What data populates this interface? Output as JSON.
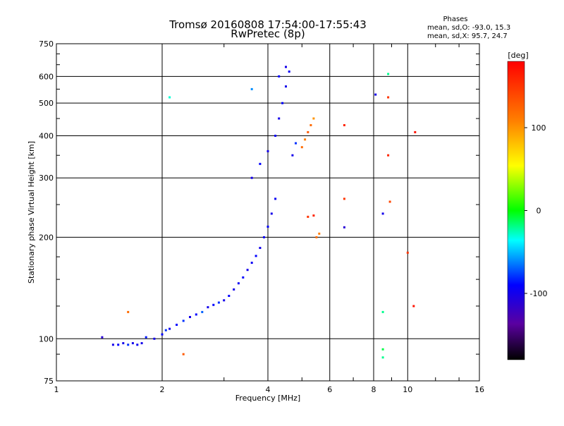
{
  "chart_data": {
    "type": "scatter",
    "title": "Tromsø 20160808 17:54:00-17:55:43",
    "subtitle": "RwPretec (8p)",
    "legend_text": {
      "heading": "Phases",
      "line_o": "mean, sd,O: -93.0, 15.3",
      "line_x": "mean, sd,X:  95.7, 24.7"
    },
    "xlabel": "Frequency [MHz]",
    "ylabel": "Stationary phase Virtual Height [km]",
    "xscale": "log",
    "yscale": "log",
    "xlim": [
      1,
      16
    ],
    "ylim": [
      75,
      750
    ],
    "x_ticks": [
      "1",
      "2",
      "4",
      "6",
      "8",
      "10",
      "16"
    ],
    "y_ticks": [
      "75",
      "100",
      "200",
      "300",
      "400",
      "500",
      "600",
      "750"
    ],
    "grid": true,
    "colorbar": {
      "label": "[deg]",
      "range": [
        -180,
        180
      ],
      "ticks": [
        "100",
        "0",
        "-100"
      ]
    },
    "series": [
      {
        "points": [
          [
            1.35,
            101,
            -110
          ],
          [
            1.45,
            96,
            -100
          ],
          [
            1.5,
            96,
            -90
          ],
          [
            1.55,
            97,
            -100
          ],
          [
            1.6,
            96,
            -80
          ],
          [
            1.65,
            97,
            -100
          ],
          [
            1.7,
            96,
            -95
          ],
          [
            1.75,
            97,
            -100
          ],
          [
            1.8,
            101,
            -85
          ],
          [
            1.9,
            100,
            -100
          ],
          [
            2.0,
            103,
            -90
          ],
          [
            2.05,
            106,
            -80
          ],
          [
            2.1,
            107,
            -100
          ],
          [
            2.2,
            110,
            -90
          ],
          [
            2.3,
            113,
            -80
          ],
          [
            2.4,
            116,
            -100
          ],
          [
            2.5,
            118,
            -90
          ],
          [
            2.6,
            120,
            -70
          ],
          [
            2.7,
            124,
            -100
          ],
          [
            2.8,
            126,
            -90
          ],
          [
            2.9,
            128,
            -80
          ],
          [
            3.0,
            130,
            -100
          ],
          [
            3.1,
            134,
            -90
          ],
          [
            3.2,
            140,
            -100
          ],
          [
            3.3,
            146,
            -95
          ],
          [
            3.4,
            152,
            -90
          ],
          [
            3.5,
            160,
            -100
          ],
          [
            3.6,
            168,
            -95
          ],
          [
            3.7,
            176,
            -90
          ],
          [
            3.8,
            186,
            -100
          ],
          [
            3.9,
            200,
            -95
          ],
          [
            4.0,
            215,
            -90
          ],
          [
            4.1,
            235,
            -100
          ],
          [
            4.2,
            260,
            -95
          ],
          [
            3.6,
            300,
            -100
          ],
          [
            3.8,
            330,
            -90
          ],
          [
            4.0,
            360,
            -100
          ],
          [
            4.2,
            400,
            -95
          ],
          [
            4.3,
            450,
            -100
          ],
          [
            4.4,
            500,
            -90
          ],
          [
            4.5,
            560,
            -100
          ],
          [
            4.6,
            620,
            -95
          ],
          [
            4.5,
            640,
            -100
          ],
          [
            4.3,
            600,
            -90
          ],
          [
            4.7,
            350,
            -100
          ],
          [
            4.8,
            380,
            -80
          ],
          [
            5.0,
            370,
            120
          ],
          [
            5.1,
            390,
            110
          ],
          [
            5.2,
            410,
            130
          ],
          [
            5.3,
            430,
            120
          ],
          [
            5.4,
            450,
            100
          ],
          [
            5.2,
            230,
            150
          ],
          [
            5.4,
            232,
            160
          ],
          [
            5.5,
            200,
            120
          ],
          [
            5.6,
            205,
            110
          ],
          [
            6.6,
            430,
            160
          ],
          [
            6.6,
            260,
            150
          ],
          [
            6.6,
            214,
            -110
          ],
          [
            8.1,
            530,
            -100
          ],
          [
            8.8,
            610,
            -20
          ],
          [
            8.8,
            520,
            150
          ],
          [
            8.8,
            350,
            160
          ],
          [
            8.9,
            255,
            140
          ],
          [
            8.5,
            235,
            -100
          ],
          [
            8.5,
            120,
            -20
          ],
          [
            8.5,
            93,
            -10
          ],
          [
            8.5,
            88,
            -20
          ],
          [
            10.5,
            410,
            170
          ],
          [
            10.0,
            180,
            150
          ],
          [
            10.4,
            125,
            170
          ],
          [
            2.1,
            520,
            -30
          ],
          [
            1.6,
            120,
            120
          ],
          [
            2.3,
            90,
            130
          ],
          [
            3.6,
            550,
            -60
          ]
        ]
      }
    ]
  }
}
